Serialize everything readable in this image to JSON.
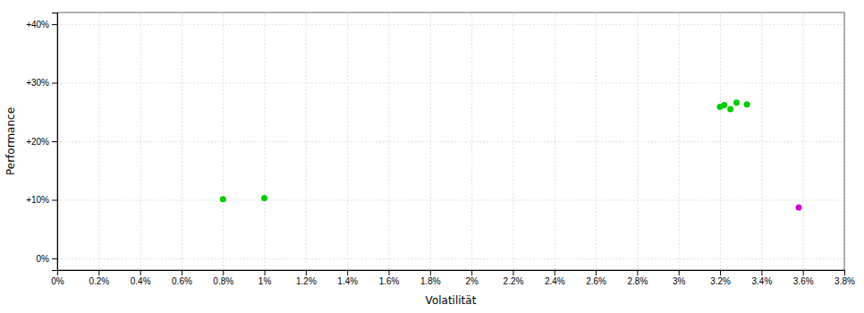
{
  "chart_data": {
    "type": "scatter",
    "xlabel": "Volatilität",
    "ylabel": "Performance",
    "xlim": [
      0.0,
      0.038
    ],
    "ylim": [
      -0.02,
      0.42
    ],
    "xticks": [
      {
        "value": 0.0,
        "label": "0%"
      },
      {
        "value": 0.002,
        "label": "0.2%"
      },
      {
        "value": 0.004,
        "label": "0.4%"
      },
      {
        "value": 0.006,
        "label": "0.6%"
      },
      {
        "value": 0.008,
        "label": "0.8%"
      },
      {
        "value": 0.01,
        "label": "1%"
      },
      {
        "value": 0.012,
        "label": "1.2%"
      },
      {
        "value": 0.014,
        "label": "1.4%"
      },
      {
        "value": 0.016,
        "label": "1.6%"
      },
      {
        "value": 0.018,
        "label": "1.8%"
      },
      {
        "value": 0.02,
        "label": "2%"
      },
      {
        "value": 0.022,
        "label": "2.2%"
      },
      {
        "value": 0.024,
        "label": "2.4%"
      },
      {
        "value": 0.026,
        "label": "2.6%"
      },
      {
        "value": 0.028,
        "label": "2.8%"
      },
      {
        "value": 0.03,
        "label": "3%"
      },
      {
        "value": 0.032,
        "label": "3.2%"
      },
      {
        "value": 0.034,
        "label": "3.4%"
      },
      {
        "value": 0.036,
        "label": "3.6%"
      },
      {
        "value": 0.038,
        "label": "3.8%"
      }
    ],
    "yticks": [
      {
        "value": 0.0,
        "label": "0%"
      },
      {
        "value": 0.1,
        "label": "+10%"
      },
      {
        "value": 0.2,
        "label": "+20%"
      },
      {
        "value": 0.3,
        "label": "+30%"
      },
      {
        "value": 0.4,
        "label": "+40%"
      }
    ],
    "grid": true,
    "series": [
      {
        "color": "#00cc00",
        "x": [
          0.008,
          0.01,
          0.032,
          0.0322,
          0.0325,
          0.0328,
          0.0333
        ],
        "values": [
          0.101,
          0.103,
          0.259,
          0.262,
          0.255,
          0.266,
          0.263
        ]
      },
      {
        "color": "#cc00cc",
        "x": [
          0.0358
        ],
        "values": [
          0.087
        ]
      }
    ]
  }
}
